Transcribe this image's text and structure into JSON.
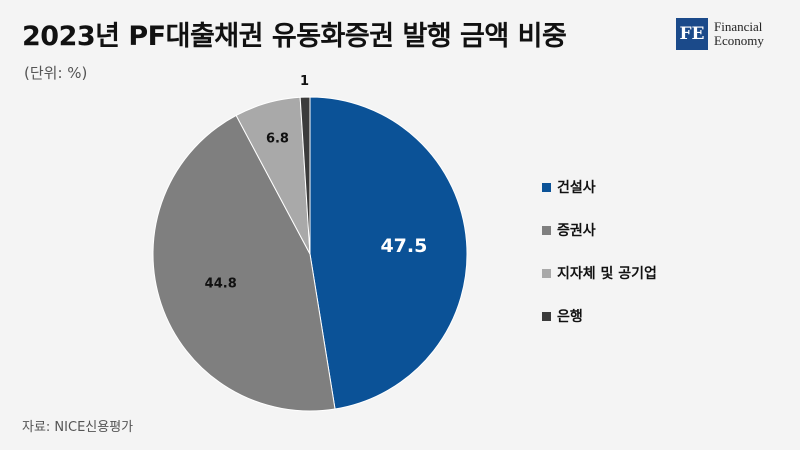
{
  "header": {
    "title": "2023년 PF대출채권 유동화증권 발행 금액 비중",
    "unit": "(단위: %)"
  },
  "logo": {
    "mark": "FE",
    "line1": "Financial",
    "line2": "Economy"
  },
  "chart_data": {
    "type": "pie",
    "title": "2023년 PF대출채권 유동화증권 발행 금액 비중",
    "unit": "%",
    "legend_position": "right",
    "categories": [
      "건설사",
      "증권사",
      "지자체 및 공기업",
      "은행"
    ],
    "values": [
      47.5,
      44.8,
      6.8,
      1
    ],
    "colors": [
      "#0b5297",
      "#7f7f7f",
      "#a9a9a9",
      "#3b3b3b"
    ],
    "label_colors": [
      "#ffffff",
      "#111111",
      "#111111",
      "#111111"
    ]
  },
  "footer": {
    "source": "자료: NICE신용평가"
  }
}
